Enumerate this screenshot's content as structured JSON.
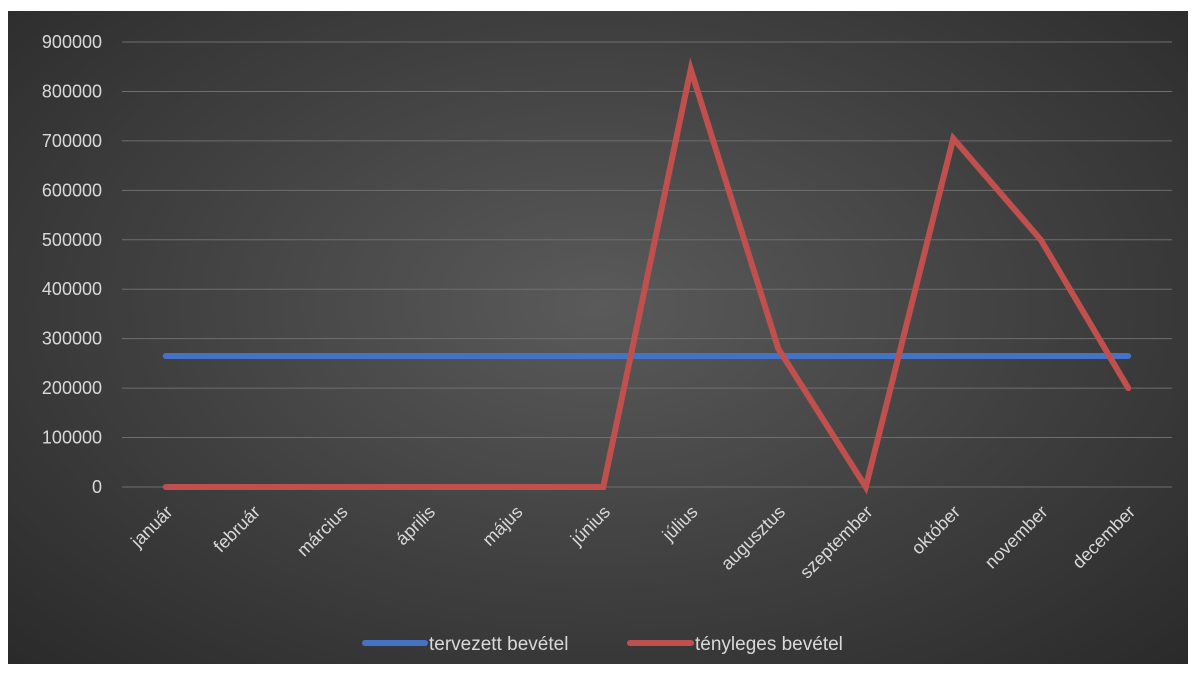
{
  "chart_data": {
    "type": "line",
    "categories": [
      "január",
      "február",
      "március",
      "április",
      "május",
      "június",
      "július",
      "augusztus",
      "szeptember",
      "október",
      "november",
      "december"
    ],
    "series": [
      {
        "name": "tervezett bevétel",
        "color": "#4472c4",
        "values": [
          265000,
          265000,
          265000,
          265000,
          265000,
          265000,
          265000,
          265000,
          265000,
          265000,
          265000,
          265000
        ]
      },
      {
        "name": "tényleges bevétel",
        "color": "#c0504d",
        "values": [
          0,
          0,
          0,
          0,
          0,
          0,
          845000,
          280000,
          0,
          705000,
          500000,
          200000
        ]
      }
    ],
    "yticks": [
      0,
      100000,
      200000,
      300000,
      400000,
      500000,
      600000,
      700000,
      800000,
      900000
    ],
    "ylim": [
      0,
      900000
    ],
    "grid": true,
    "legend": "bottom"
  }
}
